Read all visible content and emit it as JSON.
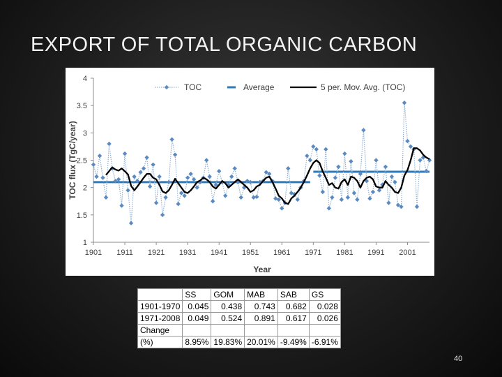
{
  "slide": {
    "title": "EXPORT OF TOTAL ORGANIC CARBON",
    "page_number": "40"
  },
  "chart_data": {
    "type": "line",
    "xlabel": "Year",
    "ylabel": "TOC flux (TgC/year)",
    "xlim": [
      1901,
      2008
    ],
    "ylim": [
      1,
      4
    ],
    "x_ticks": [
      1901,
      1911,
      1921,
      1931,
      1941,
      1951,
      1961,
      1971,
      1981,
      1991,
      2001
    ],
    "y_ticks": [
      1,
      1.5,
      2,
      2.5,
      3,
      3.5,
      4
    ],
    "y_tick_labels": [
      "1",
      "1.5",
      "2",
      "2.5",
      "3",
      "3.5",
      "4"
    ],
    "grid": false,
    "legend_position": "top",
    "colors": {
      "toc": "#5b8ac0",
      "average": "#2e7ab8",
      "moving_avg": "#000000"
    },
    "series": [
      {
        "name": "TOC",
        "style": "dotted-line-with-diamond-markers",
        "x": [
          1901,
          1902,
          1903,
          1904,
          1905,
          1906,
          1907,
          1908,
          1909,
          1910,
          1911,
          1912,
          1913,
          1914,
          1915,
          1916,
          1917,
          1918,
          1919,
          1920,
          1921,
          1922,
          1923,
          1924,
          1925,
          1926,
          1927,
          1928,
          1929,
          1930,
          1931,
          1932,
          1933,
          1934,
          1935,
          1936,
          1937,
          1938,
          1939,
          1940,
          1941,
          1942,
          1943,
          1944,
          1945,
          1946,
          1947,
          1948,
          1949,
          1950,
          1951,
          1952,
          1953,
          1954,
          1955,
          1956,
          1957,
          1958,
          1959,
          1960,
          1961,
          1962,
          1963,
          1964,
          1965,
          1966,
          1967,
          1968,
          1969,
          1970,
          1971,
          1972,
          1973,
          1974,
          1975,
          1976,
          1977,
          1978,
          1979,
          1980,
          1981,
          1982,
          1983,
          1984,
          1985,
          1986,
          1987,
          1988,
          1989,
          1990,
          1991,
          1992,
          1993,
          1994,
          1995,
          1996,
          1997,
          1998,
          1999,
          2000,
          2001,
          2002,
          2003,
          2004,
          2005,
          2006,
          2007,
          2008
        ],
        "values": [
          2.42,
          2.2,
          2.58,
          2.18,
          1.82,
          2.8,
          2.35,
          2.12,
          2.15,
          1.67,
          2.62,
          1.95,
          1.35,
          2.2,
          2.12,
          2.28,
          2.35,
          2.55,
          2.02,
          2.42,
          1.72,
          2.2,
          1.5,
          1.82,
          2.1,
          2.88,
          2.6,
          1.7,
          1.9,
          1.85,
          2.18,
          2.25,
          2.15,
          2.0,
          2.1,
          2.18,
          2.5,
          2.2,
          1.75,
          2.05,
          2.3,
          2.1,
          1.85,
          2.05,
          2.2,
          2.35,
          2.1,
          1.82,
          2.0,
          2.12,
          2.1,
          1.82,
          1.83,
          2.1,
          2.12,
          2.28,
          2.25,
          2.12,
          1.8,
          1.78,
          1.62,
          1.72,
          2.35,
          1.9,
          1.88,
          1.78,
          2.0,
          2.12,
          2.58,
          2.5,
          2.75,
          2.7,
          2.22,
          1.92,
          2.7,
          1.62,
          1.82,
          2.18,
          2.38,
          1.78,
          2.62,
          1.82,
          2.48,
          1.9,
          1.78,
          2.25,
          3.05,
          2.12,
          1.8,
          1.92,
          2.5,
          1.95,
          2.05,
          2.38,
          1.72,
          2.2,
          2.1,
          1.68,
          1.65,
          3.55,
          2.85,
          2.75,
          2.7,
          1.65,
          2.5,
          2.55,
          2.3,
          2.5
        ]
      },
      {
        "name": "Average",
        "style": "dashed-thick",
        "segments": [
          {
            "x_start": 1901,
            "x_end": 1970,
            "value": 2.1
          },
          {
            "x_start": 1971,
            "x_end": 2008,
            "value": 2.29
          }
        ]
      },
      {
        "name": "5 per. Mov. Avg. (TOC)",
        "style": "solid-thick",
        "x": [
          1905,
          1906,
          1907,
          1908,
          1909,
          1910,
          1911,
          1912,
          1913,
          1914,
          1915,
          1916,
          1917,
          1918,
          1919,
          1920,
          1921,
          1922,
          1923,
          1924,
          1925,
          1926,
          1927,
          1928,
          1929,
          1930,
          1931,
          1932,
          1933,
          1934,
          1935,
          1936,
          1937,
          1938,
          1939,
          1940,
          1941,
          1942,
          1943,
          1944,
          1945,
          1946,
          1947,
          1948,
          1949,
          1950,
          1951,
          1952,
          1953,
          1954,
          1955,
          1956,
          1957,
          1958,
          1959,
          1960,
          1961,
          1962,
          1963,
          1964,
          1965,
          1966,
          1967,
          1968,
          1969,
          1970,
          1971,
          1972,
          1973,
          1974,
          1975,
          1976,
          1977,
          1978,
          1979,
          1980,
          1981,
          1982,
          1983,
          1984,
          1985,
          1986,
          1987,
          1988,
          1989,
          1990,
          1991,
          1992,
          1993,
          1994,
          1995,
          1996,
          1997,
          1998,
          1999,
          2000,
          2001,
          2002,
          2003,
          2004,
          2005,
          2006,
          2007,
          2008
        ],
        "values": [
          2.23,
          2.3,
          2.37,
          2.33,
          2.31,
          2.35,
          2.3,
          2.24,
          2.03,
          1.95,
          2.02,
          2.1,
          2.18,
          2.25,
          2.25,
          2.18,
          2.15,
          2.05,
          1.93,
          1.9,
          1.95,
          2.05,
          2.16,
          2.08,
          2.0,
          1.92,
          1.9,
          1.95,
          2.02,
          2.1,
          2.13,
          2.18,
          2.15,
          2.1,
          2.02,
          1.98,
          2.05,
          2.12,
          2.08,
          2.0,
          2.05,
          2.1,
          2.15,
          2.1,
          2.05,
          2.0,
          1.92,
          1.95,
          2.02,
          2.05,
          2.12,
          2.18,
          2.2,
          2.1,
          1.98,
          1.85,
          1.8,
          1.72,
          1.7,
          1.8,
          1.85,
          1.92,
          2.0,
          2.1,
          2.22,
          2.35,
          2.45,
          2.5,
          2.45,
          2.3,
          2.18,
          2.05,
          2.08,
          2.0,
          1.98,
          2.1,
          2.15,
          2.05,
          2.2,
          2.18,
          2.12,
          2.0,
          2.12,
          2.18,
          2.2,
          2.15,
          2.02,
          2.0,
          2.0,
          2.12,
          2.05,
          2.0,
          1.92,
          1.9,
          2.0,
          2.22,
          2.32,
          2.5,
          2.72,
          2.72,
          2.68,
          2.6,
          2.55,
          2.52
        ]
      }
    ]
  },
  "table": {
    "columns": [
      "",
      "SS",
      "GOM",
      "MAB",
      "SAB",
      "GS"
    ],
    "rows": [
      {
        "label": "1901-1970",
        "values": [
          "0.045",
          "0.438",
          "0.743",
          "0.682",
          "0.028"
        ]
      },
      {
        "label": "1971-2008",
        "values": [
          "0.049",
          "0.524",
          "0.891",
          "0.617",
          "0.026"
        ]
      },
      {
        "label": "Change",
        "values": [
          "",
          "",
          "",
          "",
          ""
        ]
      },
      {
        "label": "(%)",
        "values": [
          "8.95%",
          "19.83%",
          "20.01%",
          "-9.49%",
          "-6.91%"
        ]
      }
    ]
  }
}
